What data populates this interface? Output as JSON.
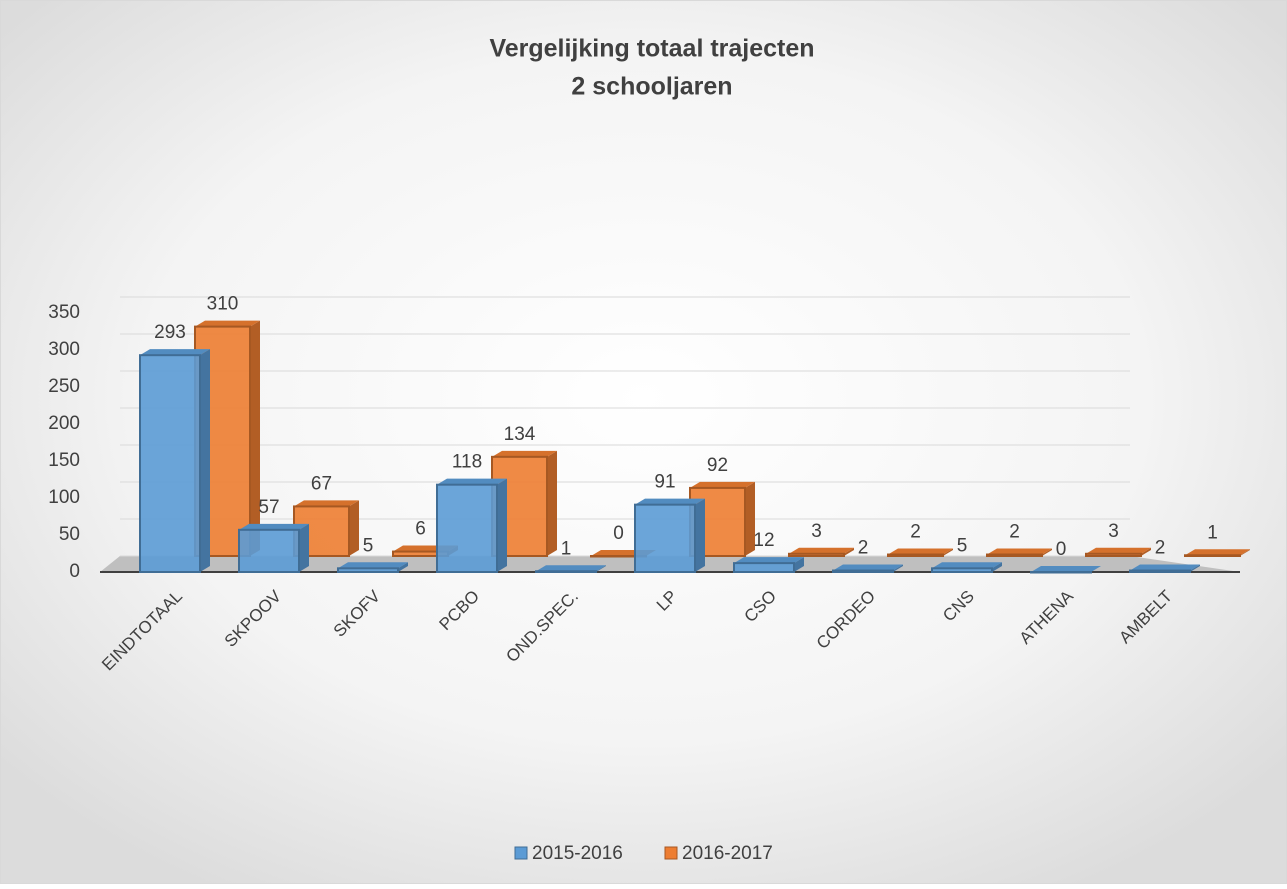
{
  "chart_data": {
    "type": "bar3d",
    "title": [
      "Vergelijking totaal trajecten",
      "2 schooljaren"
    ],
    "categories": [
      "EINDTOTAAL",
      "SKPOOV",
      "SKOFV",
      "PCBO",
      "OND.SPEC.",
      "LP",
      "CSO",
      "CORDEO",
      "CNS",
      "ATHENA",
      "AMBELT"
    ],
    "series": [
      {
        "name": "2015-2016",
        "color": "#5b9bd5",
        "values": [
          293,
          57,
          5,
          118,
          1,
          91,
          12,
          2,
          5,
          0,
          2
        ]
      },
      {
        "name": "2016-2017",
        "color": "#ed7d31",
        "values": [
          310,
          67,
          6,
          134,
          0,
          92,
          3,
          2,
          2,
          3,
          1
        ]
      }
    ],
    "ylim": [
      0,
      350
    ],
    "yticks": [
      0,
      50,
      100,
      150,
      200,
      250,
      300,
      350
    ],
    "grid": true,
    "legend": "bottom"
  }
}
